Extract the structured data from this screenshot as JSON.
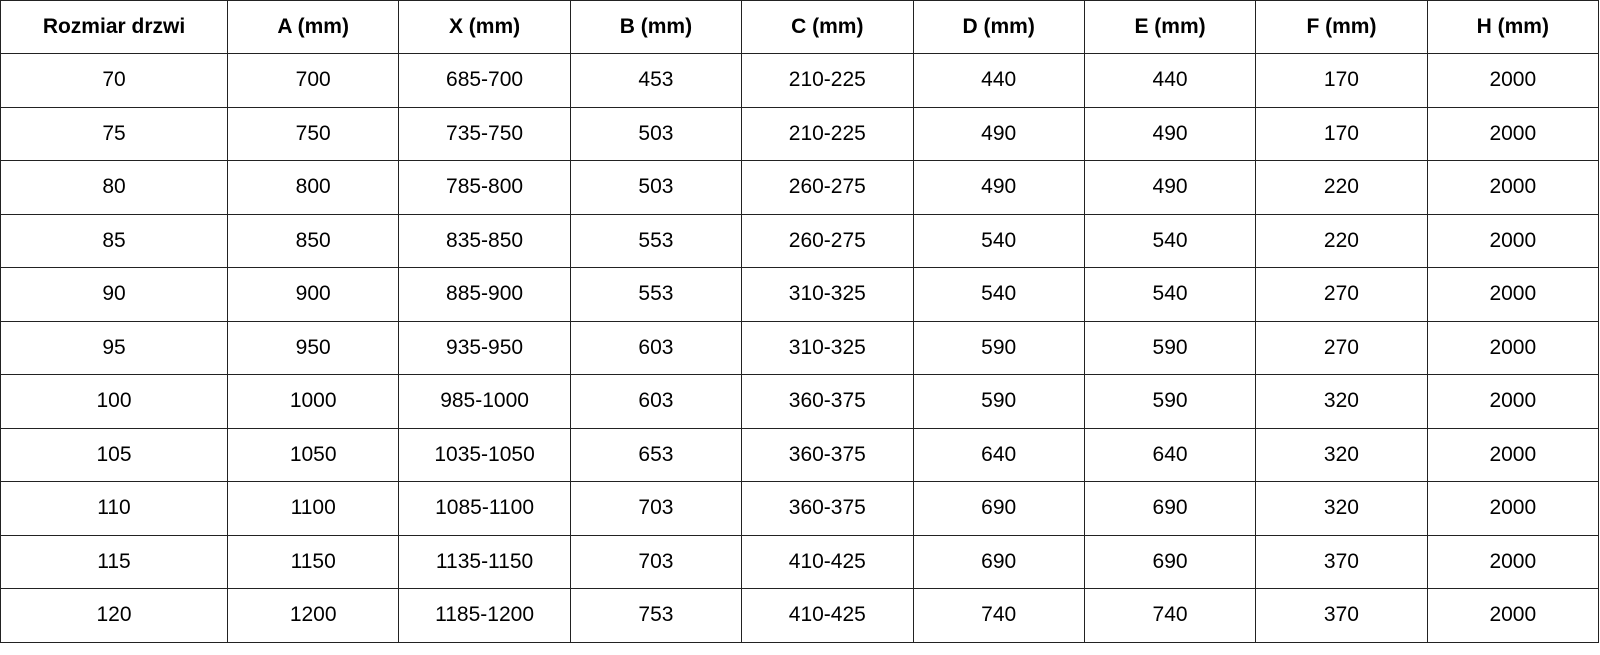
{
  "headers": [
    "Rozmiar drzwi",
    "A (mm)",
    "X (mm)",
    "B (mm)",
    "C (mm)",
    "D (mm)",
    "E (mm)",
    "F (mm)",
    "H (mm)"
  ],
  "rows": [
    [
      "70",
      "700",
      "685-700",
      "453",
      "210-225",
      "440",
      "440",
      "170",
      "2000"
    ],
    [
      "75",
      "750",
      "735-750",
      "503",
      "210-225",
      "490",
      "490",
      "170",
      "2000"
    ],
    [
      "80",
      "800",
      "785-800",
      "503",
      "260-275",
      "490",
      "490",
      "220",
      "2000"
    ],
    [
      "85",
      "850",
      "835-850",
      "553",
      "260-275",
      "540",
      "540",
      "220",
      "2000"
    ],
    [
      "90",
      "900",
      "885-900",
      "553",
      "310-325",
      "540",
      "540",
      "270",
      "2000"
    ],
    [
      "95",
      "950",
      "935-950",
      "603",
      "310-325",
      "590",
      "590",
      "270",
      "2000"
    ],
    [
      "100",
      "1000",
      "985-1000",
      "603",
      "360-375",
      "590",
      "590",
      "320",
      "2000"
    ],
    [
      "105",
      "1050",
      "1035-1050",
      "653",
      "360-375",
      "640",
      "640",
      "320",
      "2000"
    ],
    [
      "110",
      "1100",
      "1085-1100",
      "703",
      "360-375",
      "690",
      "690",
      "320",
      "2000"
    ],
    [
      "115",
      "1150",
      "1135-1150",
      "703",
      "410-425",
      "690",
      "690",
      "370",
      "2000"
    ],
    [
      "120",
      "1200",
      "1185-1200",
      "753",
      "410-425",
      "740",
      "740",
      "370",
      "2000"
    ]
  ]
}
